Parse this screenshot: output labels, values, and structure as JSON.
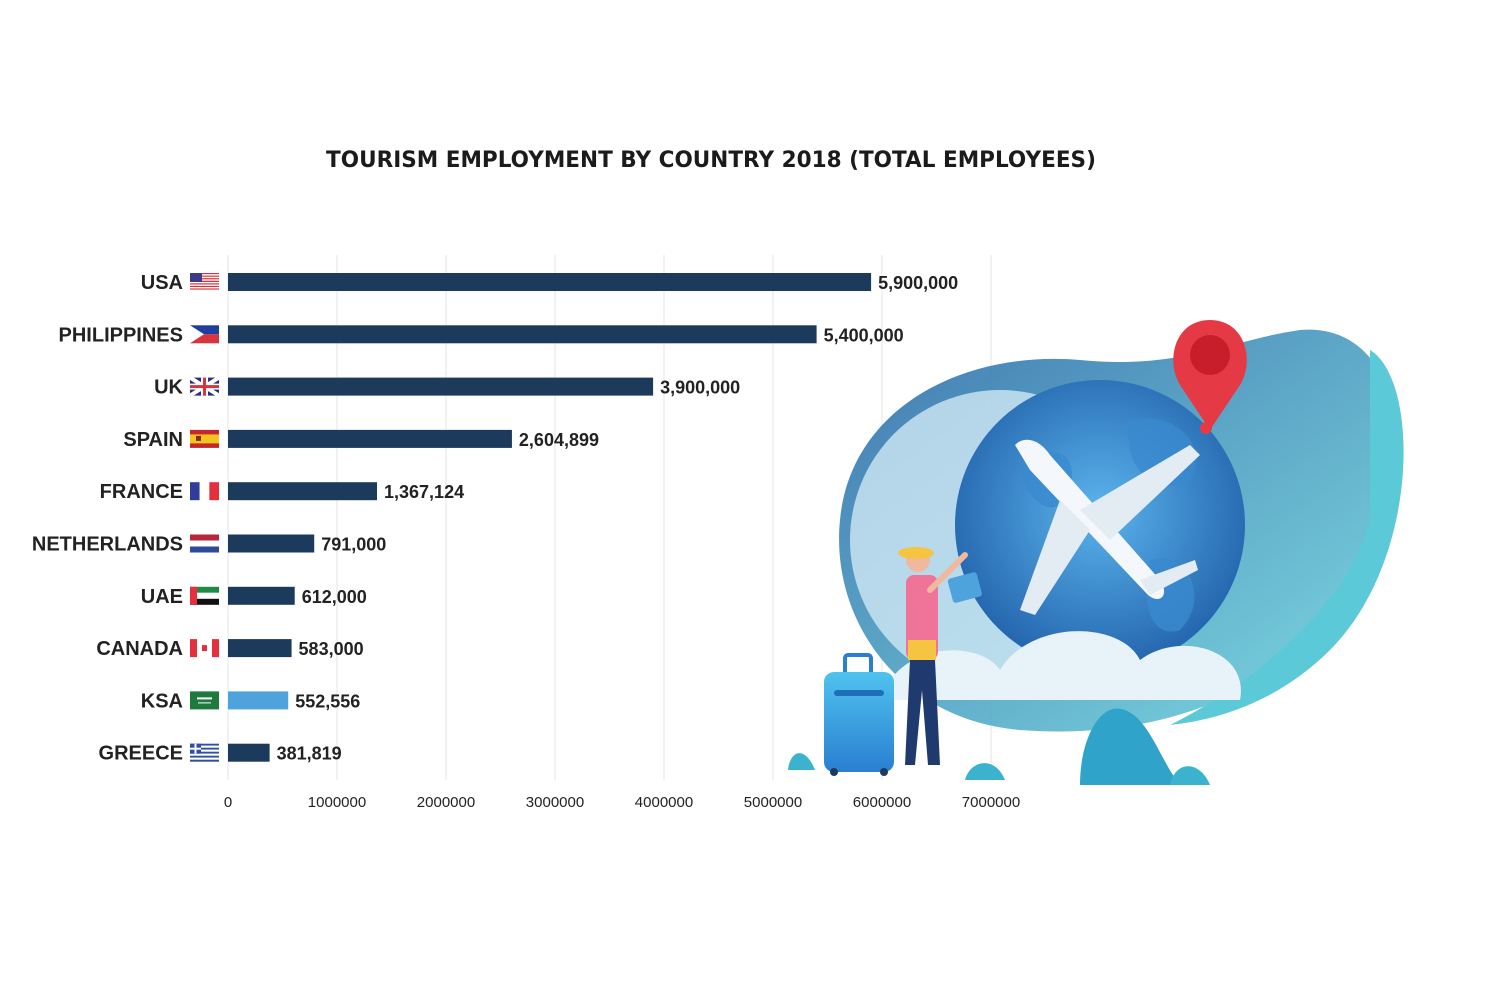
{
  "chart_data": {
    "type": "bar",
    "orientation": "horizontal",
    "title": "TOURISM EMPLOYMENT BY COUNTRY 2018 (TOTAL EMPLOYEES)",
    "xlabel": "",
    "ylabel": "",
    "xlim": [
      0,
      7000000
    ],
    "grid": true,
    "categories": [
      "USA",
      "PHILIPPINES",
      "UK",
      "SPAIN",
      "FRANCE",
      "NETHERLANDS",
      "UAE",
      "CANADA",
      "KSA",
      "GREECE"
    ],
    "values": [
      5900000,
      5400000,
      3900000,
      2604899,
      1367124,
      791000,
      612000,
      583000,
      552556,
      381819
    ],
    "value_labels": [
      "5,900,000",
      "5,400,000",
      "3,900,000",
      "2,604,899",
      "1,367,124",
      "791,000",
      "612,000",
      "583,000",
      "552,556",
      "381,819"
    ],
    "flags": [
      "us-flag",
      "philippines-flag",
      "uk-flag",
      "spain-flag",
      "france-flag",
      "netherlands-flag",
      "uae-flag",
      "canada-flag",
      "saudi-flag",
      "greece-flag"
    ],
    "x_ticks": [
      "0",
      "1000000",
      "2000000",
      "3000000",
      "4000000",
      "5000000",
      "6000000",
      "7000000"
    ],
    "tick_values": [
      0,
      1000000,
      2000000,
      3000000,
      4000000,
      5000000,
      6000000,
      7000000
    ],
    "bar_colors": [
      "#1b3a5c",
      "#1b3a5c",
      "#1b3a5c",
      "#1b3a5c",
      "#1b3a5c",
      "#1b3a5c",
      "#1b3a5c",
      "#1b3a5c",
      "#4fa3dc",
      "#1b3a5c"
    ]
  }
}
